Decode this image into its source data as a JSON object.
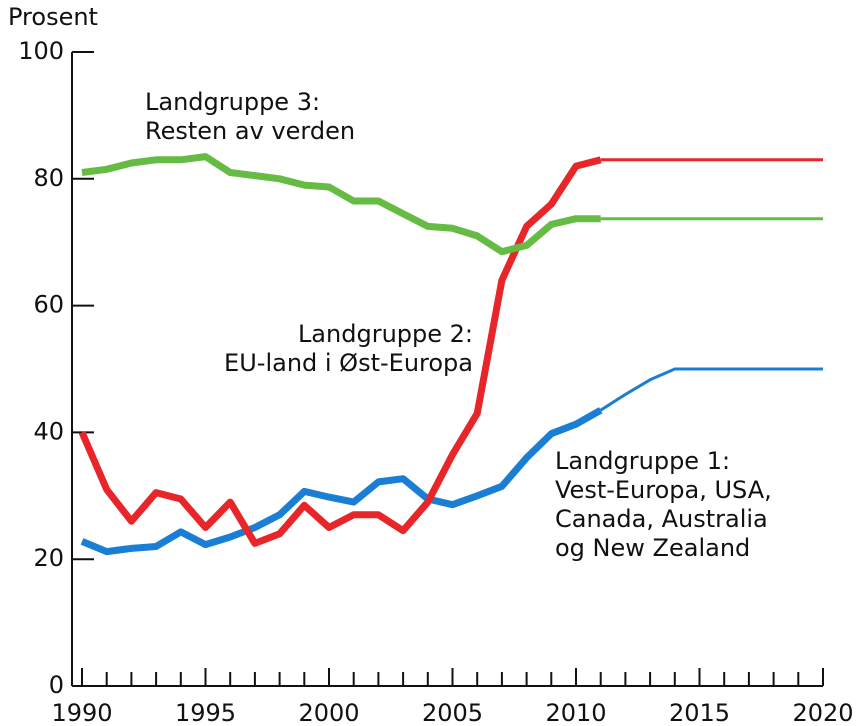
{
  "chart_data": {
    "type": "line",
    "y_label": "Prosent",
    "x": [
      1990,
      1991,
      1992,
      1993,
      1994,
      1995,
      1996,
      1997,
      1998,
      1999,
      2000,
      2001,
      2002,
      2003,
      2004,
      2005,
      2006,
      2007,
      2008,
      2009,
      2010,
      2011,
      2012,
      2013,
      2014,
      2015,
      2016,
      2017,
      2018,
      2019,
      2020
    ],
    "xlim": [
      1990,
      2020
    ],
    "xticks": [
      1990,
      1995,
      2000,
      2005,
      2010,
      2015,
      2020
    ],
    "ylim": [
      0,
      100
    ],
    "yticks": [
      0,
      20,
      40,
      60,
      80,
      100
    ],
    "projected_from": 2011,
    "series": [
      {
        "name": "Landgruppe 1:\nVest-Europa, USA,\nCanada, Australia\nog New Zealand",
        "color": "#1a7fd4",
        "values": [
          22.8,
          21.2,
          21.7,
          22,
          24.3,
          22.3,
          23.5,
          25,
          27,
          30.7,
          29.8,
          29,
          32.2,
          32.7,
          29.5,
          28.6,
          30,
          31.5,
          36,
          39.8,
          41.3,
          43.5,
          46,
          48.3,
          50,
          50,
          50,
          50,
          50,
          50,
          50
        ]
      },
      {
        "name": "Landgruppe 2:\nEU-land i Øst-Europa",
        "color": "#e8262a",
        "values": [
          40,
          31,
          26,
          30.5,
          29.5,
          25,
          29,
          22.5,
          24,
          28.5,
          25,
          27,
          27,
          24.5,
          29,
          36.5,
          43,
          64,
          72.5,
          76,
          82,
          83,
          83,
          83,
          83,
          83,
          83,
          83,
          83,
          83,
          83
        ]
      },
      {
        "name": "Landgruppe 3:\nResten av verden",
        "color": "#66bb44",
        "values": [
          81,
          81.5,
          82.5,
          83,
          83,
          83.5,
          81,
          80.5,
          80,
          79,
          78.7,
          76.5,
          76.5,
          74.5,
          72.5,
          72.2,
          71,
          68.5,
          69.5,
          72.8,
          73.7,
          73.7,
          73.7,
          73.7,
          73.7,
          73.7,
          73.7,
          73.7,
          73.7,
          73.7,
          73.7
        ]
      }
    ]
  }
}
